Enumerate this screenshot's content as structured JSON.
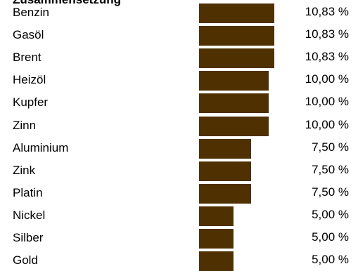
{
  "chart_data": {
    "type": "bar",
    "orientation": "horizontal",
    "title": "Zusammensetzung",
    "categories": [
      "Benzin",
      "Gasöl",
      "Brent",
      "Heizöl",
      "Kupfer",
      "Zinn",
      "Aluminium",
      "Zink",
      "Platin",
      "Nickel",
      "Silber",
      "Gold"
    ],
    "values": [
      10.83,
      10.83,
      10.83,
      10.0,
      10.0,
      10.0,
      7.5,
      7.5,
      7.5,
      5.0,
      5.0,
      5.0
    ],
    "value_labels": [
      "10,83 %",
      "10,83 %",
      "10,83 %",
      "10,00 %",
      "10,00 %",
      "10,00 %",
      "7,50 %",
      "7,50 %",
      "7,50 %",
      "5,00 %",
      "5,00 %",
      "5,00 %"
    ],
    "bar_color": "#4f3000",
    "xlim": [
      0,
      10.83
    ],
    "grid": false,
    "legend": "none"
  }
}
